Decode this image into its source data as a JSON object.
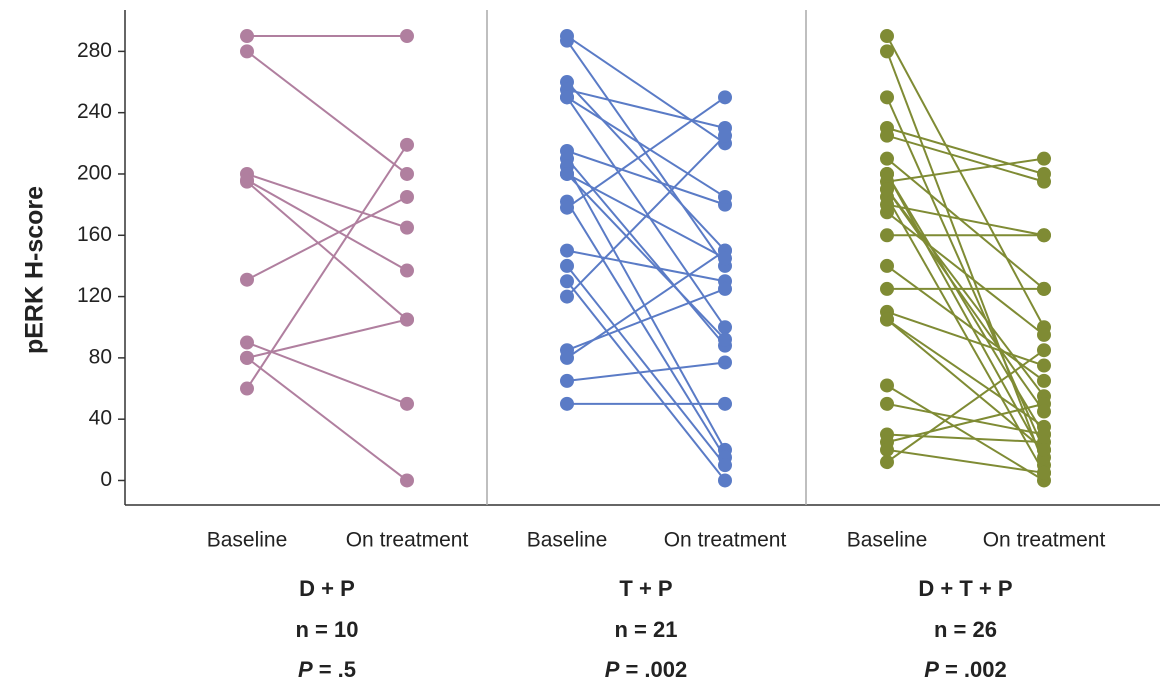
{
  "chart_data": {
    "type": "paired-dot",
    "y_label": "pERK H-score",
    "ylim": [
      -16,
      307
    ],
    "yticks": [
      0,
      40,
      80,
      120,
      160,
      200,
      240,
      280
    ],
    "conditions": [
      "Baseline",
      "On treatment"
    ],
    "groups": [
      {
        "name": "D + P",
        "n_label": "n = 10",
        "p_symbol": "P",
        "p_text": "= .5",
        "color": "#b07f9f",
        "baseline": [
          290,
          280,
          200,
          196,
          195,
          131,
          90,
          80,
          80,
          60
        ],
        "on_treatment": [
          290,
          200,
          165,
          137,
          105,
          185,
          50,
          105,
          0,
          219
        ]
      },
      {
        "name": "T + P",
        "n_label": "n = 21",
        "p_symbol": "P",
        "p_text": "= .002",
        "color": "#5a7bc6",
        "baseline": [
          290,
          287,
          260,
          255,
          250,
          215,
          210,
          205,
          200,
          182,
          178,
          150,
          140,
          130,
          120,
          85,
          80,
          65,
          50,
          250,
          200
        ],
        "on_treatment": [
          220,
          140,
          150,
          230,
          100,
          180,
          88,
          20,
          92,
          15,
          250,
          130,
          10,
          0,
          225,
          125,
          150,
          77,
          50,
          185,
          145
        ]
      },
      {
        "name": "D + T + P",
        "n_label": "n = 26",
        "p_symbol": "P",
        "p_text": "= .002",
        "color": "#7f8b34",
        "baseline": [
          290,
          280,
          250,
          230,
          225,
          210,
          200,
          195,
          190,
          185,
          180,
          175,
          160,
          140,
          125,
          110,
          105,
          62,
          50,
          30,
          25,
          20,
          12,
          200,
          190,
          105
        ],
        "on_treatment": [
          100,
          10,
          20,
          200,
          195,
          125,
          30,
          210,
          55,
          5,
          160,
          95,
          160,
          65,
          125,
          75,
          35,
          0,
          30,
          25,
          50,
          5,
          85,
          15,
          45,
          20
        ]
      }
    ]
  }
}
